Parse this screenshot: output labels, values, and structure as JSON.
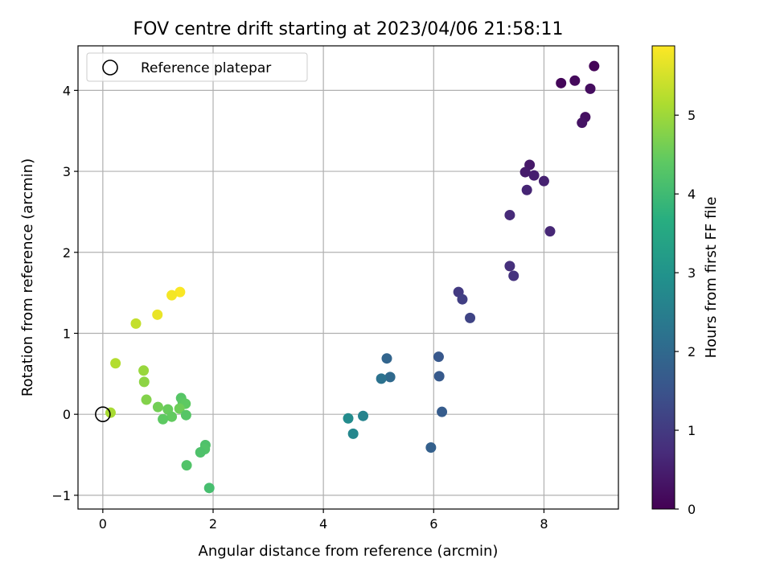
{
  "chart_data": {
    "type": "scatter",
    "title": "FOV centre drift starting at 2023/04/06 21:58:11",
    "xlabel": "Angular distance from reference (arcmin)",
    "ylabel": "Rotation from reference (arcmin)",
    "xlim": [
      -0.45,
      9.35
    ],
    "ylim": [
      -1.17,
      4.55
    ],
    "xticks": [
      0,
      2,
      4,
      6,
      8
    ],
    "xtick_labels": [
      "0",
      "2",
      "4",
      "6",
      "8"
    ],
    "yticks": [
      -1,
      0,
      1,
      2,
      3,
      4
    ],
    "ytick_labels": [
      "−1",
      "0",
      "1",
      "2",
      "3",
      "4"
    ],
    "grid": true,
    "legend": {
      "location": "upper-left",
      "entries": [
        "Reference platepar"
      ]
    },
    "reference_point": {
      "x": 0,
      "y": 0
    },
    "colorbar": {
      "label": "Hours from first FF file",
      "range": [
        0,
        5.88
      ],
      "ticks": [
        0,
        1,
        2,
        3,
        4,
        5
      ],
      "tick_labels": [
        "0",
        "1",
        "2",
        "3",
        "4",
        "5"
      ],
      "colormap": "viridis"
    },
    "points": [
      {
        "x": 8.91,
        "y": 4.3,
        "c": 0.05
      },
      {
        "x": 8.31,
        "y": 4.09,
        "c": 0.1
      },
      {
        "x": 8.56,
        "y": 4.12,
        "c": 0.15
      },
      {
        "x": 8.84,
        "y": 4.02,
        "c": 0.2
      },
      {
        "x": 8.75,
        "y": 3.67,
        "c": 0.25
      },
      {
        "x": 8.69,
        "y": 3.6,
        "c": 0.3
      },
      {
        "x": 7.74,
        "y": 3.08,
        "c": 0.4
      },
      {
        "x": 7.66,
        "y": 2.99,
        "c": 0.45
      },
      {
        "x": 7.82,
        "y": 2.95,
        "c": 0.5
      },
      {
        "x": 8.0,
        "y": 2.88,
        "c": 0.55
      },
      {
        "x": 7.69,
        "y": 2.77,
        "c": 0.6
      },
      {
        "x": 7.38,
        "y": 2.46,
        "c": 0.7
      },
      {
        "x": 8.11,
        "y": 2.26,
        "c": 0.65
      },
      {
        "x": 7.38,
        "y": 1.83,
        "c": 0.8
      },
      {
        "x": 7.45,
        "y": 1.71,
        "c": 0.85
      },
      {
        "x": 6.45,
        "y": 1.51,
        "c": 1.0
      },
      {
        "x": 6.52,
        "y": 1.42,
        "c": 1.1
      },
      {
        "x": 6.66,
        "y": 1.19,
        "c": 1.2
      },
      {
        "x": 6.09,
        "y": 0.71,
        "c": 1.6
      },
      {
        "x": 5.15,
        "y": 0.69,
        "c": 1.9
      },
      {
        "x": 6.1,
        "y": 0.47,
        "c": 1.65
      },
      {
        "x": 5.21,
        "y": 0.46,
        "c": 2.0
      },
      {
        "x": 5.05,
        "y": 0.44,
        "c": 2.2
      },
      {
        "x": 6.15,
        "y": 0.03,
        "c": 1.7
      },
      {
        "x": 5.95,
        "y": -0.41,
        "c": 1.8
      },
      {
        "x": 4.72,
        "y": -0.02,
        "c": 2.6
      },
      {
        "x": 4.45,
        "y": -0.05,
        "c": 2.8
      },
      {
        "x": 4.54,
        "y": -0.24,
        "c": 2.7
      },
      {
        "x": 1.4,
        "y": 1.51,
        "c": 5.85
      },
      {
        "x": 1.25,
        "y": 1.47,
        "c": 5.8
      },
      {
        "x": 0.99,
        "y": 1.23,
        "c": 5.7
      },
      {
        "x": 0.6,
        "y": 1.12,
        "c": 5.35
      },
      {
        "x": 0.23,
        "y": 0.63,
        "c": 5.2
      },
      {
        "x": 0.74,
        "y": 0.54,
        "c": 4.95
      },
      {
        "x": 0.75,
        "y": 0.4,
        "c": 4.85
      },
      {
        "x": 0.79,
        "y": 0.18,
        "c": 4.75
      },
      {
        "x": 1.42,
        "y": 0.2,
        "c": 4.3
      },
      {
        "x": 1.45,
        "y": 0.15,
        "c": 4.35
      },
      {
        "x": 1.5,
        "y": 0.13,
        "c": 4.4
      },
      {
        "x": 1.0,
        "y": 0.09,
        "c": 4.6
      },
      {
        "x": 1.18,
        "y": 0.06,
        "c": 4.5
      },
      {
        "x": 1.39,
        "y": 0.07,
        "c": 4.55
      },
      {
        "x": 0.14,
        "y": 0.02,
        "c": 5.1
      },
      {
        "x": 1.51,
        "y": -0.01,
        "c": 4.3
      },
      {
        "x": 1.25,
        "y": -0.03,
        "c": 4.45
      },
      {
        "x": 1.09,
        "y": -0.06,
        "c": 4.4
      },
      {
        "x": 1.86,
        "y": -0.38,
        "c": 4.2
      },
      {
        "x": 1.85,
        "y": -0.43,
        "c": 4.25
      },
      {
        "x": 1.77,
        "y": -0.47,
        "c": 4.2
      },
      {
        "x": 1.52,
        "y": -0.63,
        "c": 4.25
      },
      {
        "x": 1.93,
        "y": -0.91,
        "c": 4.1
      }
    ]
  }
}
